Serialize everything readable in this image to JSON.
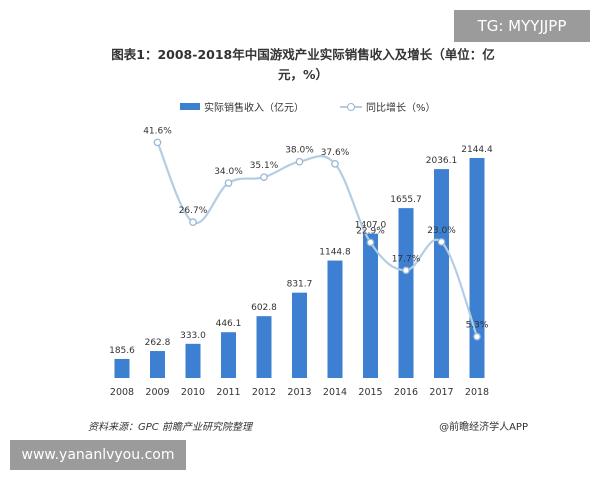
{
  "watermark_top": "TG: MYYJJPP",
  "watermark_bottom": "www.yananlvyou.com",
  "source": "资料来源：GPC 前瞻产业研究院整理",
  "credit": "@前瞻经济学人APP",
  "colors": {
    "bar": "#3d7fd0",
    "line": "#b5cde3",
    "marker_stroke": "#9bb7d4"
  },
  "chart_data": {
    "type": "bar",
    "title": "图表1：2008-2018年中国游戏产业实际销售收入及增长（单位：亿元，%）",
    "categories": [
      "2008",
      "2009",
      "2010",
      "2011",
      "2012",
      "2013",
      "2014",
      "2015",
      "2016",
      "2017",
      "2018"
    ],
    "series": [
      {
        "name": "实际销售收入（亿元）",
        "type": "bar",
        "values": [
          185.6,
          262.8,
          333.0,
          446.1,
          602.8,
          831.7,
          1144.8,
          1407.0,
          1655.7,
          2036.1,
          2144.4
        ],
        "labels": [
          "185.6",
          "262.8",
          "333.0",
          "446.1",
          "602.8",
          "831.7",
          "1144.8",
          "1407.0",
          "1655.7",
          "2036.1",
          "2144.4"
        ]
      },
      {
        "name": "同比增长（%）",
        "type": "line",
        "x": [
          "2009",
          "2010",
          "2011",
          "2012",
          "2013",
          "2014",
          "2015",
          "2016",
          "2017",
          "2018"
        ],
        "values": [
          41.6,
          26.7,
          34.0,
          35.1,
          38.0,
          37.6,
          22.9,
          17.7,
          23.0,
          5.3
        ],
        "labels": [
          "41.6%",
          "26.7%",
          "34.0%",
          "35.1%",
          "38.0%",
          "37.6%",
          "22.9%",
          "17.7%",
          "23.0%",
          "5.3%"
        ]
      }
    ],
    "legend_position": "top"
  }
}
